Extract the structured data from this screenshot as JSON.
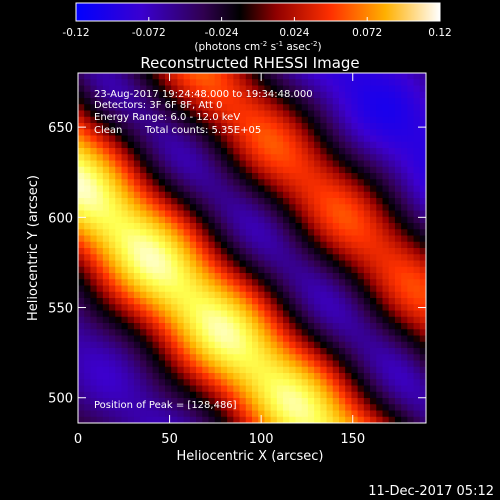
{
  "chart_data": {
    "type": "heatmap",
    "title": "Reconstructed RHESSI Image",
    "xlabel": "Heliocentric X (arcsec)",
    "ylabel": "Heliocentric Y (arcsec)",
    "xlim": [
      0,
      190
    ],
    "ylim": [
      486,
      680
    ],
    "xticks": [
      0,
      50,
      100,
      150
    ],
    "yticks": [
      500,
      550,
      600,
      650
    ],
    "colorbar": {
      "range": [
        -0.12,
        0.12
      ],
      "ticks": [
        "-0.12",
        "-0.072",
        "-0.024",
        "0.024",
        "0.072",
        "0.12"
      ],
      "units_label": "(photons cm",
      "units_label_mid": " s",
      "units_label_end": " asec",
      "units_paren": ")",
      "exp1": "-2",
      "exp2": "-1",
      "exp3": "-2"
    },
    "annotations": {
      "time": "23-Aug-2017 19:24:48.000 to 19:34:48.000",
      "detectors": "Detectors: 3F 6F 8F, Att 0",
      "energy": "Energy Range: 6.0 - 12.0 keV",
      "method": "Clean",
      "counts": "Total counts: 5.35E+05",
      "peak": "Position of Peak = [128,486]"
    },
    "peak_position": [
      128,
      486
    ],
    "colors": [
      "#0000ff",
      "#4000c0",
      "#000000",
      "#c00000",
      "#ff4000",
      "#ffff00",
      "#ffffff"
    ]
  },
  "footer": {
    "date": "11-Dec-2017 05:12"
  }
}
